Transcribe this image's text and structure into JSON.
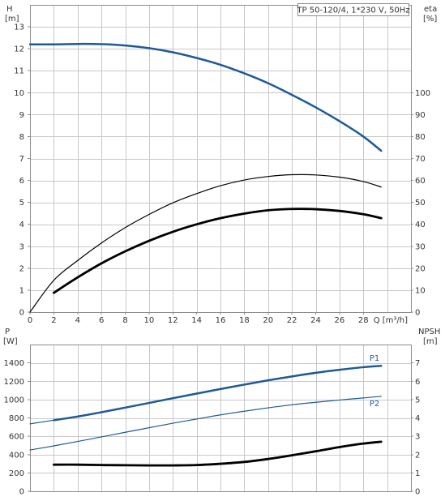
{
  "chart_data": [
    {
      "type": "line",
      "title": "TP 50-120/4, 1*230 V, 50Hz",
      "xlabel": "Q [m³/h]",
      "ylabel": "H",
      "ylabel_unit": "[m]",
      "y2label": "eta",
      "y2label_unit": "[%]",
      "xlim": [
        0,
        32
      ],
      "ylim": [
        0,
        14
      ],
      "y2lim": [
        0,
        140
      ],
      "xticks": [
        "0",
        "2",
        "4",
        "6",
        "8",
        "10",
        "12",
        "14",
        "16",
        "18",
        "20",
        "22",
        "24",
        "26",
        "28"
      ],
      "yticks": [
        "0",
        "1",
        "2",
        "3",
        "4",
        "5",
        "6",
        "7",
        "8",
        "9",
        "10",
        "11",
        "12",
        "13"
      ],
      "y2ticks": [
        "0",
        "10",
        "20",
        "30",
        "40",
        "50",
        "60",
        "70",
        "80",
        "90",
        "100"
      ],
      "grid": true,
      "series": [
        {
          "axis": "left",
          "color": "#1f5a96",
          "width": 2.5,
          "x": [
            0,
            2,
            4,
            6,
            8,
            10,
            12,
            14,
            16,
            18,
            20,
            22,
            24,
            26,
            28,
            29.5
          ],
          "y": [
            12.2,
            12.2,
            12.22,
            12.21,
            12.15,
            12.03,
            11.84,
            11.58,
            11.27,
            10.88,
            10.43,
            9.9,
            9.33,
            8.7,
            8.0,
            7.35
          ]
        },
        {
          "axis": "right",
          "color": "#000000",
          "width": 1.2,
          "x": [
            0,
            2,
            4,
            6,
            8,
            10,
            12,
            14,
            16,
            18,
            20,
            22,
            24,
            26,
            28,
            29.5
          ],
          "y": [
            0,
            14.5,
            23.5,
            31.5,
            38.5,
            44.5,
            49.8,
            54.0,
            57.6,
            60.2,
            61.8,
            62.6,
            62.5,
            61.5,
            59.5,
            57.0
          ]
        },
        {
          "axis": "right",
          "color": "#000000",
          "width": 2.8,
          "x": [
            2,
            4,
            6,
            8,
            10,
            12,
            14,
            16,
            18,
            20,
            22,
            24,
            26,
            28,
            29.5
          ],
          "y": [
            8.8,
            15.8,
            22.2,
            27.7,
            32.5,
            36.6,
            40.0,
            42.8,
            44.9,
            46.4,
            47.0,
            46.9,
            46.1,
            44.6,
            42.8
          ]
        }
      ]
    },
    {
      "type": "line",
      "xlim": [
        0,
        32
      ],
      "ylim": [
        0,
        1600
      ],
      "y2lim": [
        0,
        8
      ],
      "ylabel": "P",
      "ylabel_unit": "[W]",
      "y2label": "NPSH",
      "y2label_unit": "[m]",
      "yticks": [
        "0",
        "200",
        "400",
        "600",
        "800",
        "1000",
        "1200",
        "1400"
      ],
      "y2ticks": [
        "0",
        "1",
        "2",
        "3",
        "4",
        "5",
        "6",
        "7"
      ],
      "grid": true,
      "series": [
        {
          "name": "P1",
          "axis": "left",
          "color": "#1f5a96",
          "width": 2.5,
          "x": [
            2,
            4,
            6,
            8,
            10,
            12,
            14,
            16,
            18,
            20,
            22,
            24,
            26,
            28,
            29.5
          ],
          "y": [
            775,
            815,
            862,
            912,
            963,
            1015,
            1065,
            1115,
            1163,
            1210,
            1252,
            1292,
            1325,
            1353,
            1368
          ]
        },
        {
          "name": "",
          "axis": "left",
          "color": "#1f5a96",
          "width": 1.2,
          "x": [
            0,
            2
          ],
          "y": [
            735,
            775
          ]
        },
        {
          "name": "P2",
          "axis": "left",
          "color": "#1f5a96",
          "width": 1.2,
          "x": [
            0,
            2,
            4,
            6,
            8,
            10,
            12,
            14,
            16,
            18,
            20,
            22,
            24,
            26,
            28,
            29.5
          ],
          "y": [
            450,
            495,
            543,
            593,
            643,
            693,
            742,
            788,
            833,
            873,
            910,
            943,
            970,
            995,
            1018,
            1035
          ]
        },
        {
          "name": "",
          "axis": "right",
          "color": "#000000",
          "width": 2.8,
          "x": [
            2,
            4,
            6,
            8,
            10,
            12,
            14,
            16,
            18,
            20,
            22,
            24,
            26,
            28,
            29.5
          ],
          "y": [
            1.45,
            1.45,
            1.43,
            1.42,
            1.41,
            1.41,
            1.43,
            1.5,
            1.6,
            1.76,
            1.96,
            2.18,
            2.41,
            2.6,
            2.7
          ]
        }
      ]
    }
  ]
}
